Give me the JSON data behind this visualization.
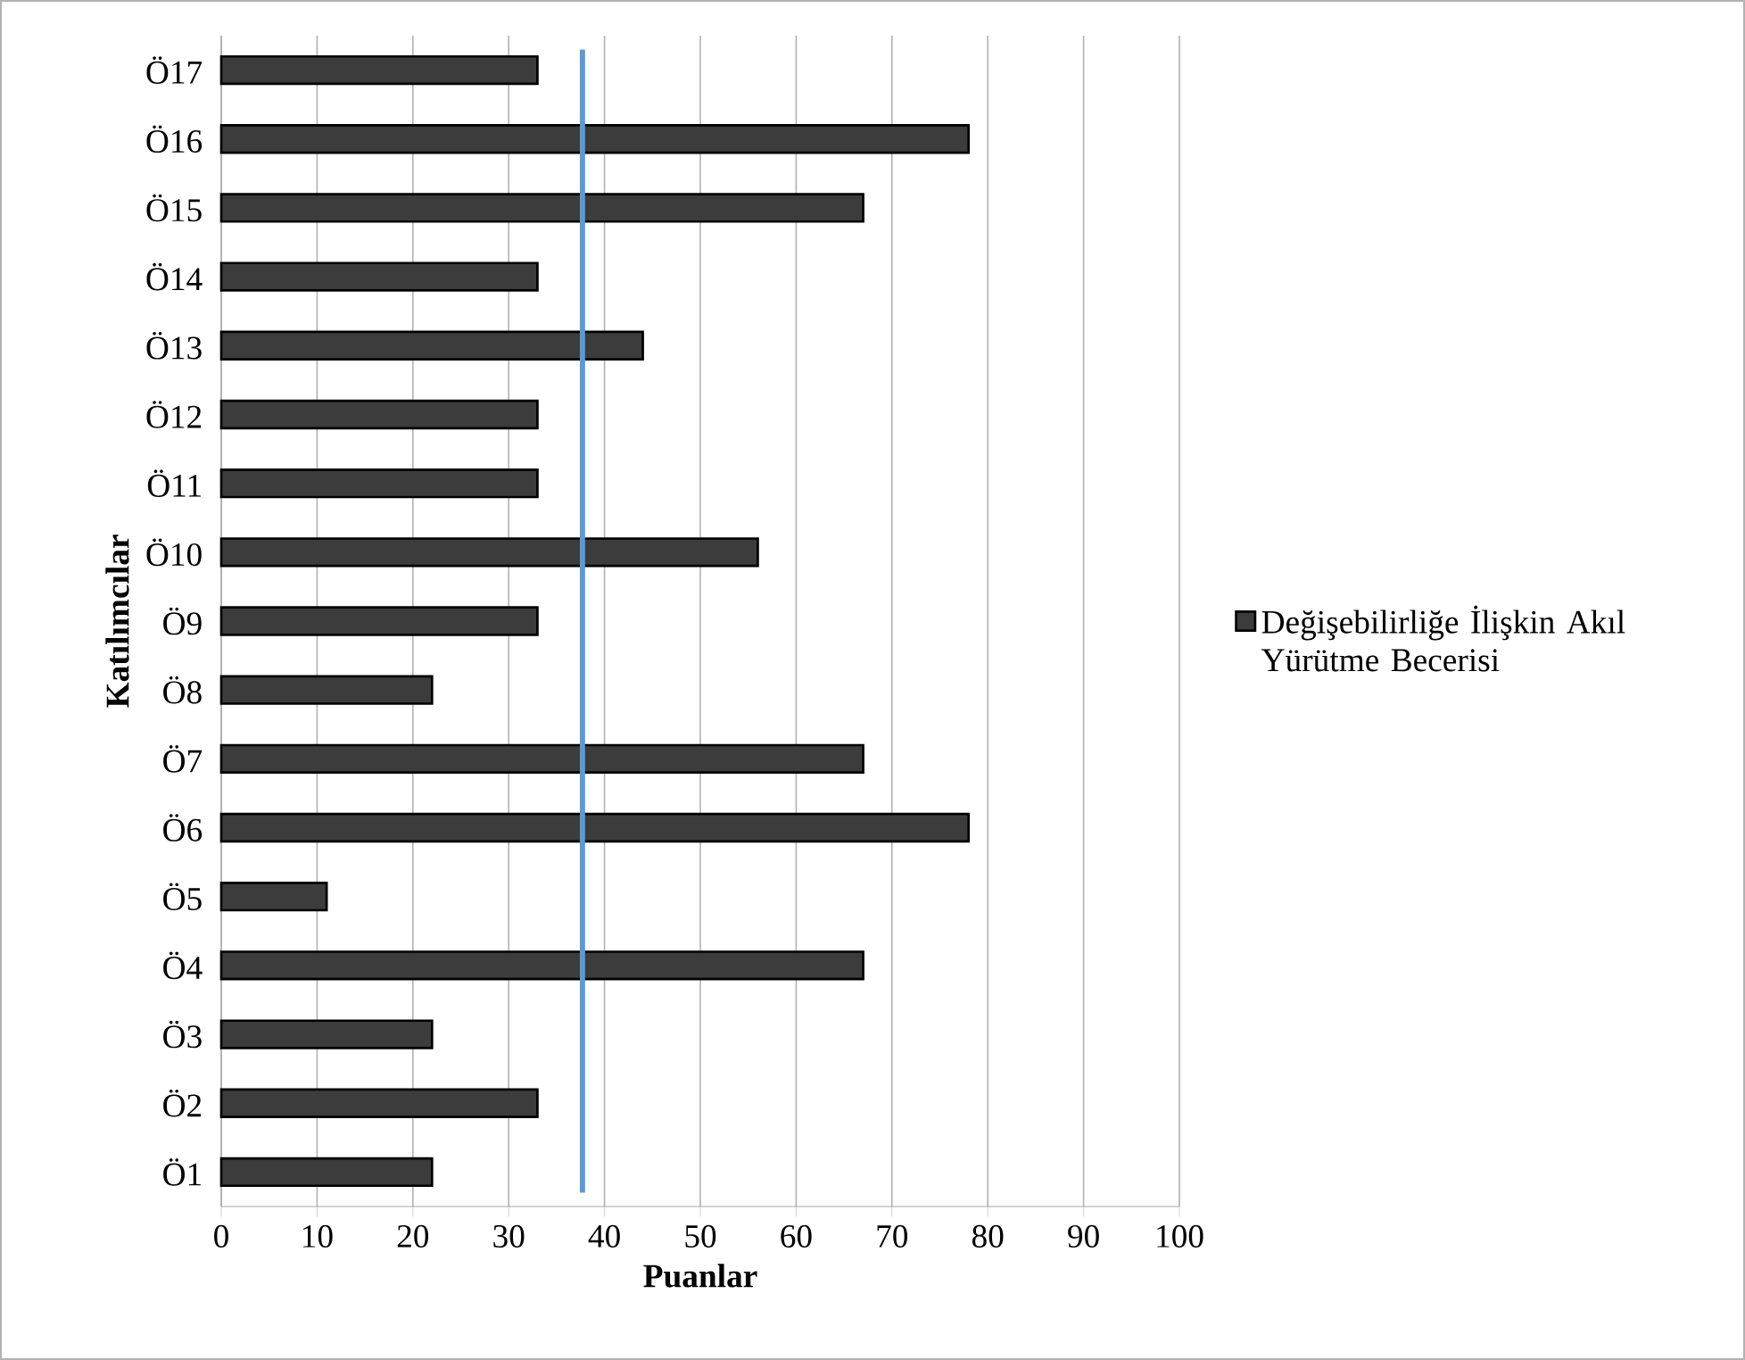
{
  "chart_data": {
    "type": "bar",
    "orientation": "horizontal",
    "xlabel": "Puanlar",
    "ylabel": "Katılımcılar",
    "categories": [
      "Ö17",
      "Ö16",
      "Ö15",
      "Ö14",
      "Ö13",
      "Ö12",
      "Ö11",
      "Ö10",
      "Ö9",
      "Ö8",
      "Ö7",
      "Ö6",
      "Ö5",
      "Ö4",
      "Ö3",
      "Ö2",
      "Ö1"
    ],
    "series": [
      {
        "name": "Değişebilirliğe İlişkin Akıl Yürütme Becerisi",
        "color": "#3c3c3c",
        "values": [
          33,
          78,
          67,
          33,
          44,
          33,
          33,
          56,
          33,
          22,
          67,
          78,
          11,
          67,
          22,
          33,
          22
        ]
      }
    ],
    "xlim": [
      0,
      100
    ],
    "xticks": [
      0,
      10,
      20,
      30,
      40,
      50,
      60,
      70,
      80,
      90,
      100
    ],
    "grid": "x",
    "legend": "right",
    "ref_lines": [
      {
        "axis": "x",
        "value": 37.7,
        "color": "#5b9bd5"
      }
    ]
  }
}
